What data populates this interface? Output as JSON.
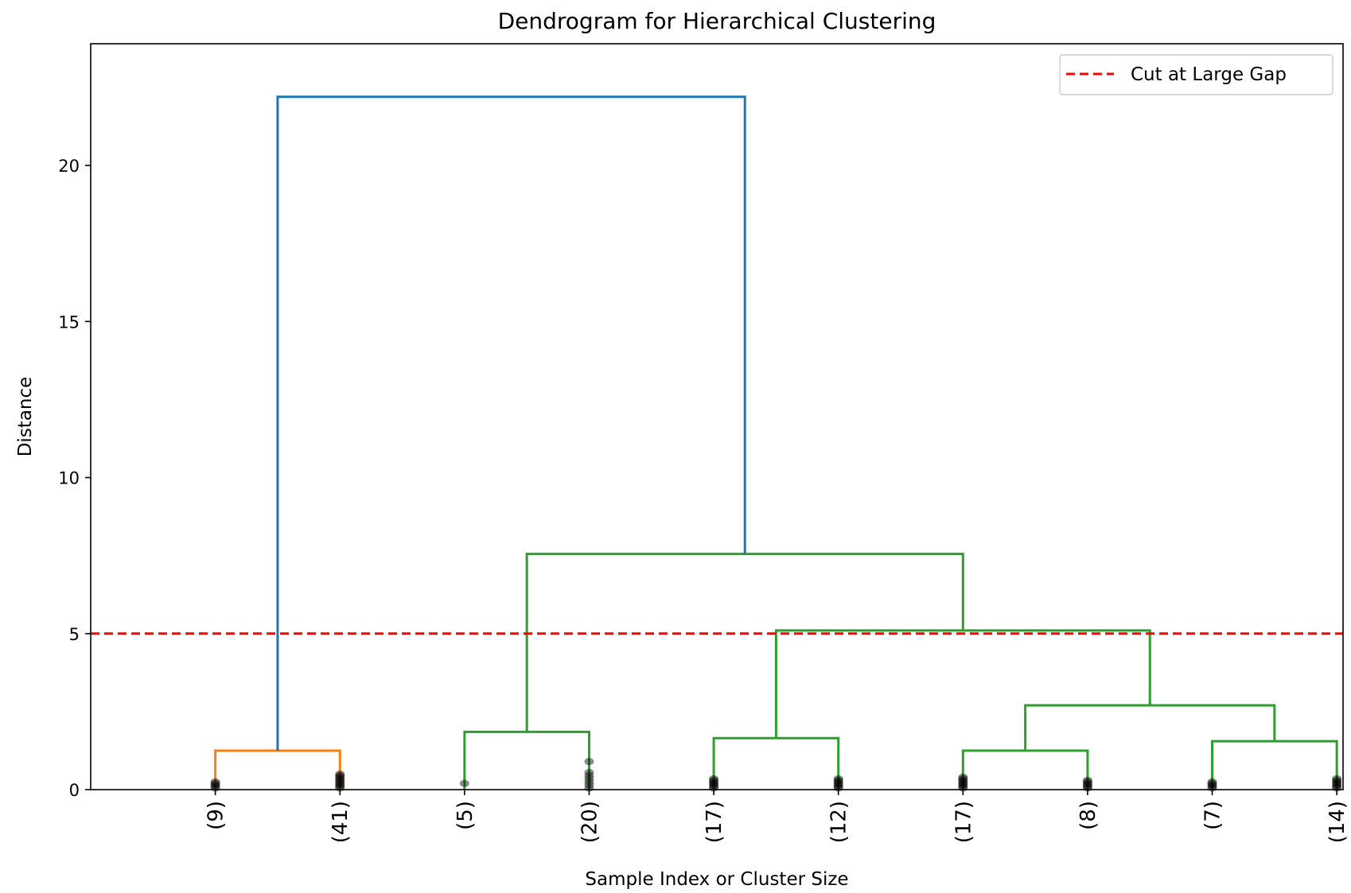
{
  "chart_data": {
    "type": "dendrogram",
    "title": "Dendrogram for Hierarchical Clustering",
    "xlabel": "Sample Index or Cluster Size",
    "ylabel": "Distance",
    "ylim": [
      0,
      23.9
    ],
    "yticks": [
      0,
      5,
      10,
      15,
      20
    ],
    "leaves": [
      "(9)",
      "(41)",
      "(5)",
      "(20)",
      "(17)",
      "(12)",
      "(17)",
      "(8)",
      "(7)",
      "(14)"
    ],
    "leaf_positions": [
      5,
      15,
      25,
      35,
      45,
      55,
      65,
      75,
      85,
      95
    ],
    "xlim": [
      -5,
      95.5
    ],
    "colors": {
      "orange": "#ff7f0e",
      "green": "#2ca02c",
      "blue": "#1f77b4",
      "cut": "#ff0000",
      "leaf_markers": "#000000"
    },
    "merges": [
      {
        "left_x": 5,
        "right_x": 15,
        "height": 1.25,
        "left_base": 0,
        "right_base": 0,
        "color": "orange"
      },
      {
        "left_x": 25,
        "right_x": 35,
        "height": 1.85,
        "left_base": 0,
        "right_base": 0,
        "color": "green"
      },
      {
        "left_x": 45,
        "right_x": 55,
        "height": 1.65,
        "left_base": 0,
        "right_base": 0,
        "color": "green"
      },
      {
        "left_x": 65,
        "right_x": 75,
        "height": 1.25,
        "left_base": 0,
        "right_base": 0,
        "color": "green"
      },
      {
        "left_x": 85,
        "right_x": 95,
        "height": 1.55,
        "left_base": 0,
        "right_base": 0,
        "color": "green"
      },
      {
        "left_x": 70,
        "right_x": 90,
        "height": 2.7,
        "left_base": 1.25,
        "right_base": 1.55,
        "color": "green"
      },
      {
        "left_x": 50,
        "right_x": 80,
        "height": 5.1,
        "left_base": 1.65,
        "right_base": 2.7,
        "color": "green"
      },
      {
        "left_x": 30,
        "right_x": 65,
        "height": 7.55,
        "left_base": 1.85,
        "right_base": 5.1,
        "color": "green"
      },
      {
        "left_x": 10,
        "right_x": 47.5,
        "height": 22.2,
        "left_base": 1.25,
        "right_base": 7.55,
        "color": "blue"
      }
    ],
    "leaf_markers": [
      {
        "x": 5,
        "values": [
          0.05,
          0.1,
          0.15,
          0.2,
          0.25
        ]
      },
      {
        "x": 15,
        "values": [
          0.05,
          0.1,
          0.15,
          0.2,
          0.25,
          0.3,
          0.35,
          0.4,
          0.45,
          0.5
        ]
      },
      {
        "x": 25,
        "values": [
          0.2
        ]
      },
      {
        "x": 35,
        "values": [
          0.05,
          0.15,
          0.25,
          0.35,
          0.45,
          0.55,
          0.9
        ]
      },
      {
        "x": 45,
        "values": [
          0.05,
          0.1,
          0.15,
          0.2,
          0.25,
          0.3,
          0.35
        ]
      },
      {
        "x": 55,
        "values": [
          0.05,
          0.1,
          0.15,
          0.2,
          0.25,
          0.3,
          0.35
        ]
      },
      {
        "x": 65,
        "values": [
          0.05,
          0.1,
          0.15,
          0.2,
          0.25,
          0.3,
          0.35,
          0.4
        ]
      },
      {
        "x": 75,
        "values": [
          0.05,
          0.1,
          0.15,
          0.2,
          0.25,
          0.3
        ]
      },
      {
        "x": 85,
        "values": [
          0.05,
          0.1,
          0.15,
          0.2,
          0.25
        ]
      },
      {
        "x": 95,
        "values": [
          0.05,
          0.1,
          0.15,
          0.2,
          0.25,
          0.3,
          0.35
        ]
      }
    ],
    "cut_line": {
      "y": 5.0,
      "style": "dashed",
      "label": "Cut at Large Gap"
    },
    "legend": {
      "position": "top-right",
      "entries": [
        "Cut at Large Gap"
      ]
    },
    "grid": false
  }
}
